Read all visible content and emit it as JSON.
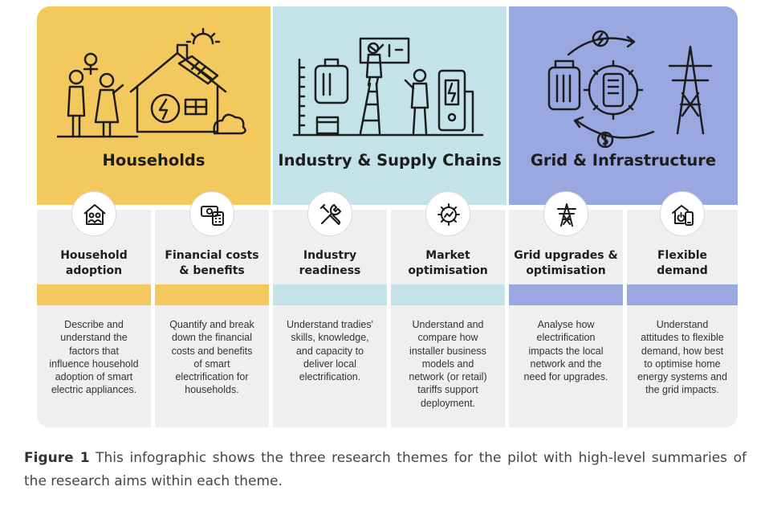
{
  "colors": {
    "households": "#f3c85c",
    "industry": "#c4e3e8",
    "grid": "#9aa8e2",
    "panel": "#efefef"
  },
  "themes": [
    {
      "title": "Households",
      "subs": [
        {
          "icon": "house-family-icon",
          "title": "Household\nadoption",
          "desc": "Describe and\nunderstand the\nfactors that\ninfluence household\nadoption of smart\nelectric appliances."
        },
        {
          "icon": "money-calculator-icon",
          "title": "Financial costs\n& benefits",
          "desc": "Quantify and break\ndown the financial\ncosts and benefits\nof smart\nelectrification for\nhouseholds."
        }
      ]
    },
    {
      "title": "Industry & Supply Chains",
      "subs": [
        {
          "icon": "tools-icon",
          "title": "Industry\nreadiness",
          "desc": "Understand tradies'\nskills, knowledge,\nand capacity to\ndeliver local\nelectrification."
        },
        {
          "icon": "gear-chart-icon",
          "title": "Market\noptimisation",
          "desc": "Understand and\ncompare how\ninstaller business\nmodels and\nnetwork (or retail)\ntariffs support\ndeployment."
        }
      ]
    },
    {
      "title": "Grid & Infrastructure",
      "subs": [
        {
          "icon": "pylon-icon",
          "title": "Grid upgrades &\noptimisation",
          "desc": "Analyse how\nelectrification\nimpacts the local\nnetwork and the\nneed for upgrades."
        },
        {
          "icon": "home-phone-icon",
          "title": "Flexible\ndemand",
          "desc": "Understand\nattitudes to flexible\ndemand, how best\nto optimise home\nenergy systems and\nthe grid impacts."
        }
      ]
    }
  ],
  "caption": {
    "label": "Figure 1",
    "text": " This infographic shows the three research themes for the pilot with high-level summaries of the research aims within each theme."
  }
}
